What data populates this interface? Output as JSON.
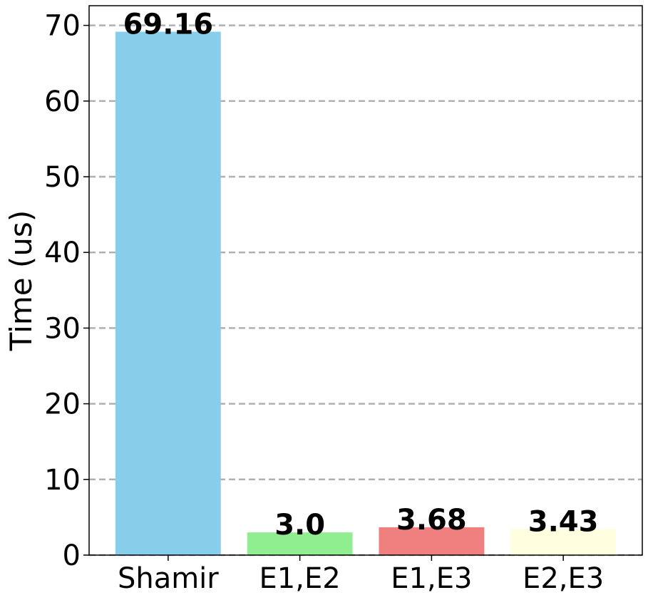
{
  "chart_data": {
    "type": "bar",
    "title": "",
    "xlabel": "",
    "ylabel": "Time (us)",
    "categories": [
      "Shamir",
      "E1,E2",
      "E1,E3",
      "E2,E3"
    ],
    "values": [
      69.16,
      3.0,
      3.68,
      3.43
    ],
    "data_labels": [
      "69.16",
      "3.0",
      "3.68",
      "3.43"
    ],
    "colors": [
      "#87ceeb",
      "#90ee90",
      "#f08080",
      "#ffffe0"
    ],
    "ylim": [
      0,
      72.6
    ],
    "yticks": [
      0,
      10,
      20,
      30,
      40,
      50,
      60,
      70
    ],
    "grid": "y-dashed",
    "grid_color": "#b0b0b0",
    "legend": "none"
  }
}
